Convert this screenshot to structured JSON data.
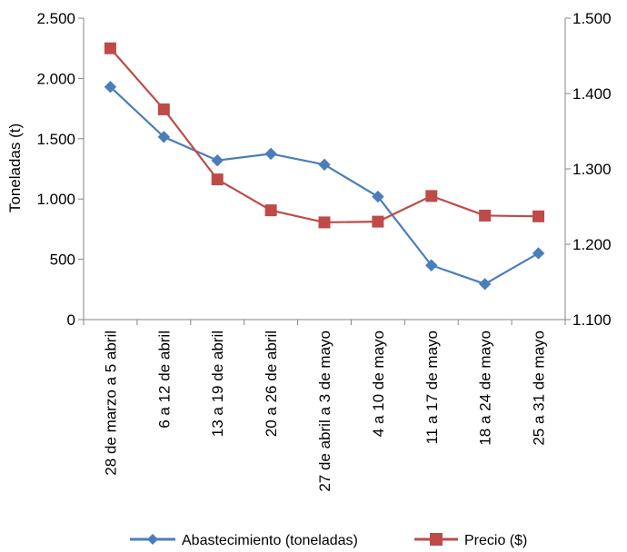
{
  "chart_data": {
    "type": "line",
    "categories": [
      "28 de marzo a 5 abril",
      "6 a 12 de abril",
      "13 a 19 de abril",
      "20 a 26 de abril",
      "27 de abril a 3 de mayo",
      "4 a 10 de mayo",
      "11 a 17 de mayo",
      "18 a 24 de mayo",
      "25 a 31 de mayo"
    ],
    "series": [
      {
        "name": "Abastecimiento (toneladas)",
        "axis": "left",
        "marker": "diamond",
        "color": "#4a7ebb",
        "values": [
          1930,
          1515,
          1320,
          1375,
          1285,
          1020,
          450,
          295,
          550
        ]
      },
      {
        "name": "Precio ($)",
        "axis": "right",
        "marker": "square",
        "color": "#be4b48",
        "values": [
          1460,
          1379,
          1286,
          1245,
          1229,
          1230,
          1264,
          1238,
          1237
        ]
      }
    ],
    "ylabel": "Toneladas (t)",
    "y_left": {
      "range": [
        0,
        2500
      ],
      "ticks": [
        0,
        500,
        1000,
        1500,
        2000,
        2500
      ],
      "tick_labels": [
        "0",
        "500",
        "1.000",
        "1.500",
        "2.000",
        "2.500"
      ]
    },
    "y_right": {
      "range": [
        1100,
        1500
      ],
      "ticks": [
        1100,
        1200,
        1300,
        1400,
        1500
      ],
      "tick_labels": [
        "1.100",
        "1.200",
        "1.300",
        "1.400",
        "1.500"
      ]
    },
    "grid": false,
    "legend_position": "bottom"
  }
}
